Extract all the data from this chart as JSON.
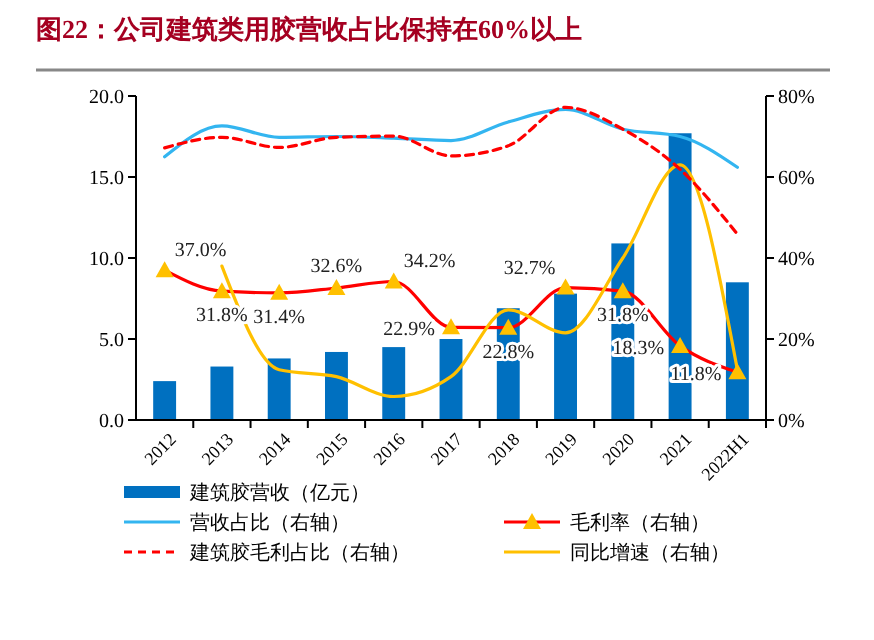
{
  "chart_data": {
    "type": "bar",
    "title": "图22：公司建筑类用胶营收占比保持在60%以上",
    "categories": [
      "2012",
      "2013",
      "2014",
      "2015",
      "2016",
      "2017",
      "2018",
      "2019",
      "2020",
      "2021",
      "2022H1"
    ],
    "series": [
      {
        "name": "建筑胶营收（亿元）",
        "color": "#0070c0",
        "values": [
          2.4,
          3.3,
          3.8,
          4.2,
          4.5,
          5.0,
          6.9,
          7.8,
          10.9,
          17.7,
          8.5
        ]
      },
      {
        "name": "毛利率（右轴）",
        "type": "line",
        "axis": "y2",
        "color": "#ff0000",
        "marker": "triangle",
        "values": [
          37.0,
          31.8,
          31.4,
          32.6,
          34.2,
          22.9,
          22.8,
          32.7,
          31.8,
          18.3,
          11.8
        ],
        "value_labels": [
          "37.0%",
          "31.8%",
          "31.4%",
          "32.6%",
          "34.2%",
          "22.9%",
          "22.8%",
          "32.7%",
          "31.8%",
          "18.3%",
          "11.8%"
        ]
      },
      {
        "name": "营收占比（右轴）",
        "type": "line",
        "axis": "y2",
        "color": "#33b5f0",
        "values": [
          65,
          72.6,
          69.8,
          70,
          69.6,
          69,
          73.6,
          76.7,
          71.8,
          70,
          62.4
        ]
      },
      {
        "name": "同比增速（右轴）",
        "type": "line",
        "axis": "y2",
        "color": "#ffc000",
        "values": [
          null,
          38,
          12.4,
          10.7,
          5.8,
          10.7,
          27.2,
          21.5,
          40,
          63,
          12.4
        ]
      },
      {
        "name": "建筑胶毛利占比（右轴）",
        "type": "line",
        "axis": "y2",
        "color": "#ff0000",
        "line_style": "dashed",
        "values": [
          67.2,
          69.8,
          67.3,
          69.8,
          70.1,
          65.2,
          67.7,
          77.2,
          71.8,
          61.9,
          45.9
        ]
      }
    ],
    "ylim": [
      0,
      20
    ],
    "yticks": [
      {
        "value": 0,
        "label": "0.0"
      },
      {
        "value": 5,
        "label": "5.0"
      },
      {
        "value": 10,
        "label": "10.0"
      },
      {
        "value": 15,
        "label": "15.0"
      },
      {
        "value": 20,
        "label": "20.0"
      }
    ],
    "y2lim": [
      0,
      80
    ],
    "y2ticks": [
      {
        "value": 0,
        "label": "0%"
      },
      {
        "value": 20,
        "label": "20%"
      },
      {
        "value": 40,
        "label": "40%"
      },
      {
        "value": 60,
        "label": "60%"
      },
      {
        "value": 80,
        "label": "80%"
      }
    ],
    "legend": "bottom",
    "grid": false
  }
}
